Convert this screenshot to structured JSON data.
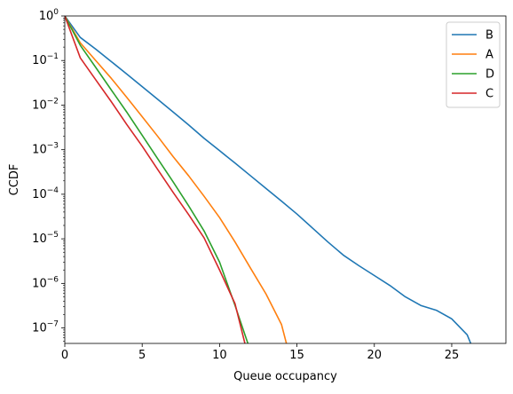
{
  "chart_data": {
    "type": "line",
    "title": "",
    "xlabel": "Queue occupancy",
    "ylabel": "CCDF",
    "xscale": "linear",
    "yscale": "log",
    "xlim": [
      0,
      28.5
    ],
    "ylim": [
      4.5e-08,
      1
    ],
    "x_ticks": [
      0,
      5,
      10,
      15,
      20,
      25
    ],
    "x_tick_labels": [
      "0",
      "5",
      "10",
      "15",
      "20",
      "25"
    ],
    "y_ticks": [
      1e-07,
      1e-06,
      1e-05,
      0.0001,
      0.001,
      0.01,
      0.1,
      1
    ],
    "y_tick_labels": [
      {
        "base": "10",
        "exp": "−7"
      },
      {
        "base": "10",
        "exp": "−6"
      },
      {
        "base": "10",
        "exp": "−5"
      },
      {
        "base": "10",
        "exp": "−4"
      },
      {
        "base": "10",
        "exp": "−3"
      },
      {
        "base": "10",
        "exp": "−2"
      },
      {
        "base": "10",
        "exp": "−1"
      },
      {
        "base": "10",
        "exp": "0"
      }
    ],
    "grid": false,
    "legend_position": "top-right",
    "series": [
      {
        "name": "B",
        "color": "#1f77b4",
        "x": [
          0,
          1,
          2,
          3,
          4,
          5,
          6,
          7,
          8,
          9,
          10,
          11,
          12,
          13,
          14,
          15,
          16,
          17,
          18,
          19,
          20,
          21,
          22,
          23,
          24,
          25,
          26,
          27
        ],
        "y": [
          1.0,
          0.33,
          0.18,
          0.095,
          0.05,
          0.026,
          0.0135,
          0.007,
          0.0036,
          0.0018,
          0.00095,
          0.0005,
          0.00026,
          0.000135,
          7e-05,
          3.6e-05,
          1.75e-05,
          8.5e-06,
          4.3e-06,
          2.5e-06,
          1.5e-06,
          9e-07,
          5e-07,
          3.2e-07,
          2.5e-07,
          1.6e-07,
          7e-08,
          1e-08
        ]
      },
      {
        "name": "A",
        "color": "#ff7f0e",
        "x": [
          0,
          1,
          2,
          3,
          4,
          5,
          6,
          7,
          8,
          9,
          10,
          11,
          12,
          13,
          14,
          15
        ],
        "y": [
          1.0,
          0.25,
          0.1,
          0.04,
          0.015,
          0.0055,
          0.002,
          0.0007,
          0.00026,
          9e-05,
          3e-05,
          8.5e-06,
          2.2e-06,
          5.8e-07,
          1.2e-07,
          5.5e-09
        ]
      },
      {
        "name": "D",
        "color": "#2ca02c",
        "x": [
          0,
          1,
          2,
          3,
          4,
          5,
          6,
          7,
          8,
          9,
          10,
          11,
          12
        ],
        "y": [
          1.0,
          0.22,
          0.07,
          0.022,
          0.007,
          0.0021,
          0.00063,
          0.00019,
          5.5e-05,
          1.5e-05,
          3e-06,
          3.2e-07,
          3e-08
        ]
      },
      {
        "name": "C",
        "color": "#d62728",
        "x": [
          0,
          1,
          2,
          3,
          4,
          5,
          6,
          7,
          8,
          9,
          10,
          11,
          12
        ],
        "y": [
          1.0,
          0.115,
          0.037,
          0.012,
          0.0037,
          0.0012,
          0.00036,
          0.00011,
          3.5e-05,
          1.05e-05,
          2e-06,
          3.5e-07,
          1.4e-08
        ]
      }
    ]
  }
}
